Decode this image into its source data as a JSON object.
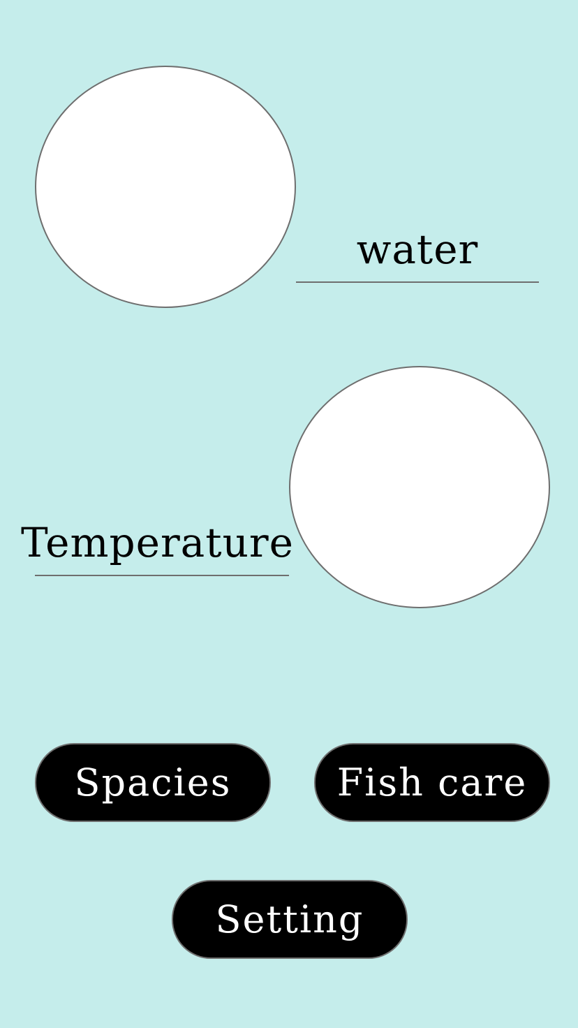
{
  "gauges": {
    "water": {
      "label": "water"
    },
    "temperature": {
      "label": "Temperature"
    }
  },
  "buttons": {
    "species_label": "Spacies",
    "fish_care_label": "Fish care",
    "setting_label": "Setting"
  },
  "colors": {
    "background": "#c5edeb",
    "gauge_fill": "#ffffff",
    "border": "#6e6e6e",
    "button_fill": "#000000",
    "button_text": "#ffffff"
  }
}
